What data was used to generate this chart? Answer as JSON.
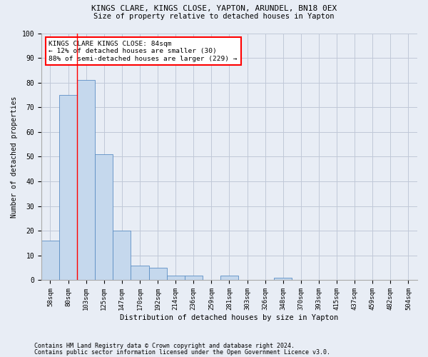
{
  "title1": "KINGS CLARE, KINGS CLOSE, YAPTON, ARUNDEL, BN18 0EX",
  "title2": "Size of property relative to detached houses in Yapton",
  "xlabel": "Distribution of detached houses by size in Yapton",
  "ylabel": "Number of detached properties",
  "bar_labels": [
    "58sqm",
    "80sqm",
    "103sqm",
    "125sqm",
    "147sqm",
    "170sqm",
    "192sqm",
    "214sqm",
    "236sqm",
    "259sqm",
    "281sqm",
    "303sqm",
    "326sqm",
    "348sqm",
    "370sqm",
    "393sqm",
    "415sqm",
    "437sqm",
    "459sqm",
    "482sqm",
    "504sqm"
  ],
  "bar_values": [
    16,
    75,
    81,
    51,
    20,
    6,
    5,
    2,
    2,
    0,
    2,
    0,
    0,
    1,
    0,
    0,
    0,
    0,
    0,
    0,
    0
  ],
  "bar_color": "#c5d8ed",
  "bar_edge_color": "#5b8ec4",
  "grid_color": "#c0c8d8",
  "background_color": "#e8edf5",
  "annotation_text": "KINGS CLARE KINGS CLOSE: 84sqm\n← 12% of detached houses are smaller (30)\n88% of semi-detached houses are larger (229) →",
  "annotation_box_color": "white",
  "annotation_box_edge": "red",
  "red_line_x": 1.5,
  "footer1": "Contains HM Land Registry data © Crown copyright and database right 2024.",
  "footer2": "Contains public sector information licensed under the Open Government Licence v3.0.",
  "ylim": [
    0,
    100
  ],
  "yticks": [
    0,
    10,
    20,
    30,
    40,
    50,
    60,
    70,
    80,
    90,
    100
  ]
}
